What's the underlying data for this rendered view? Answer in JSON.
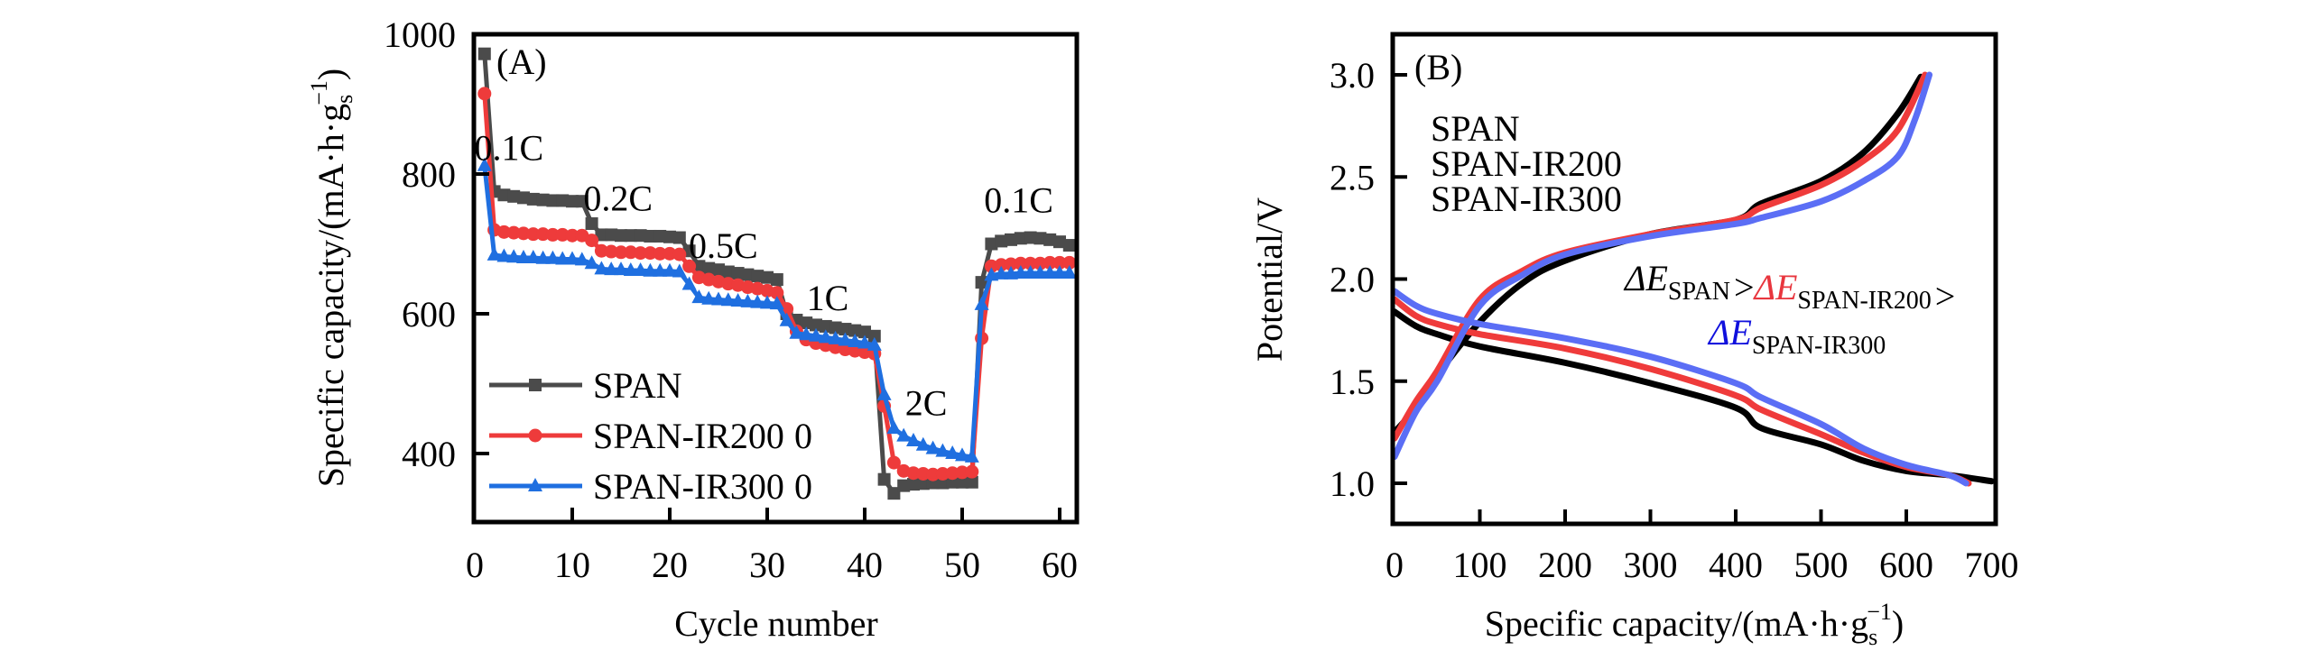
{
  "chart_data": [
    {
      "id": "A",
      "type": "line",
      "panel_label": "(A)",
      "title": "",
      "xlabel": "Cycle number",
      "ylabel_main": "Specific capacity/(mA·h·g",
      "ylabel_sub": "s",
      "ylabel_sup": "−1",
      "ylabel_close": ")",
      "xlim": [
        0,
        61
      ],
      "ylim": [
        310,
        1000
      ],
      "xticks": [
        0,
        10,
        20,
        30,
        40,
        50,
        60
      ],
      "yticks": [
        400,
        600,
        800,
        1000
      ],
      "grid": false,
      "legend_position": "bottom-left",
      "rate_labels": [
        {
          "text": "0.1C",
          "x": 3.5,
          "y": 820
        },
        {
          "text": "0.2C",
          "x": 14.7,
          "y": 748
        },
        {
          "text": "0.5C",
          "x": 25.5,
          "y": 680
        },
        {
          "text": "1C",
          "x": 36.2,
          "y": 605
        },
        {
          "text": "2C",
          "x": 46.3,
          "y": 455
        },
        {
          "text": "0.1C",
          "x": 55.8,
          "y": 745
        }
      ],
      "x": [
        1,
        2,
        3,
        4,
        5,
        6,
        7,
        8,
        9,
        10,
        11,
        12,
        13,
        14,
        15,
        16,
        17,
        18,
        19,
        20,
        21,
        22,
        23,
        24,
        25,
        26,
        27,
        28,
        29,
        30,
        31,
        32,
        33,
        34,
        35,
        36,
        37,
        38,
        39,
        40,
        41,
        42,
        43,
        44,
        45,
        46,
        47,
        48,
        49,
        50,
        51,
        52,
        53,
        54,
        55,
        56,
        57,
        58,
        59,
        60,
        61
      ],
      "series": [
        {
          "name": "SPAN",
          "legend_extra": "",
          "color": "#4b4b4b",
          "marker": "square",
          "values": [
            972,
            775,
            770,
            768,
            766,
            764,
            763,
            762,
            762,
            761,
            761,
            729,
            713,
            713,
            712,
            712,
            712,
            711,
            711,
            710,
            709,
            690,
            668,
            665,
            663,
            660,
            658,
            656,
            654,
            652,
            649,
            600,
            591,
            587,
            584,
            582,
            580,
            578,
            576,
            574,
            568,
            363,
            343,
            354,
            356,
            357,
            358,
            358,
            359,
            359,
            359,
            645,
            700,
            704,
            706,
            708,
            709,
            708,
            706,
            703,
            698
          ]
        },
        {
          "name": "SPAN-IR200",
          "legend_extra": "0",
          "color": "#ee3b3b",
          "marker": "circle",
          "values": [
            915,
            720,
            717,
            716,
            715,
            714,
            714,
            713,
            713,
            712,
            712,
            705,
            690,
            689,
            688,
            688,
            687,
            687,
            686,
            686,
            685,
            668,
            652,
            649,
            646,
            643,
            641,
            638,
            636,
            633,
            630,
            607,
            575,
            563,
            558,
            555,
            552,
            549,
            547,
            545,
            543,
            468,
            387,
            375,
            372,
            371,
            370,
            371,
            372,
            373,
            374,
            565,
            668,
            670,
            671,
            672,
            672,
            672,
            673,
            673,
            673
          ]
        },
        {
          "name": "SPAN-IR300",
          "legend_extra": "0",
          "color": "#1f6fe0",
          "marker": "triangle",
          "values": [
            812,
            684,
            682,
            681,
            680,
            680,
            679,
            679,
            678,
            678,
            677,
            672,
            664,
            663,
            663,
            662,
            662,
            661,
            661,
            661,
            660,
            642,
            623,
            621,
            620,
            619,
            618,
            617,
            616,
            615,
            614,
            590,
            572,
            570,
            568,
            566,
            564,
            562,
            560,
            558,
            555,
            484,
            436,
            425,
            418,
            412,
            407,
            403,
            400,
            397,
            395,
            613,
            655,
            657,
            657,
            658,
            658,
            658,
            658,
            658,
            658
          ]
        }
      ]
    },
    {
      "id": "B",
      "type": "line",
      "panel_label": "(B)",
      "title": "",
      "xlabel_main": "Specific capacity/(mA·h·g",
      "xlabel_sub": "s",
      "xlabel_sup": "−1",
      "xlabel_close": ")",
      "ylabel": "Potential/V",
      "xlim": [
        0,
        700
      ],
      "ylim": [
        0.79,
        3.2
      ],
      "xticks": [
        0,
        100,
        200,
        300,
        400,
        500,
        600,
        700
      ],
      "yticks": [
        1.0,
        1.5,
        2.0,
        2.5,
        3.0
      ],
      "ytick_labels": [
        "1.0",
        "1.5",
        "2.0",
        "2.5",
        "3.0"
      ],
      "grid": false,
      "legend_position": "top-left",
      "annotation": {
        "line1": [
          {
            "symbol": "ΔE",
            "sub": "SPAN",
            "color": "#000000"
          },
          {
            "op": ">"
          },
          {
            "symbol": "ΔE",
            "sub": "SPAN-IR200",
            "color": "#e8363e"
          },
          {
            "op": ">"
          }
        ],
        "line2": [
          {
            "symbol": "ΔE",
            "sub": "SPAN-IR300",
            "color": "#1010dd"
          }
        ]
      },
      "series": [
        {
          "name": "SPAN",
          "legend_color": "#000000",
          "color": "#000000",
          "charge": {
            "x": [
              0,
              25,
              50,
              100,
              150,
              200,
              300,
              400,
              430,
              500,
              550,
              590,
              617
            ],
            "y": [
              1.25,
              1.37,
              1.53,
              1.79,
              1.98,
              2.09,
              2.22,
              2.29,
              2.37,
              2.48,
              2.62,
              2.81,
              2.99
            ]
          },
          "discharge": {
            "x": [
              0,
              25,
              50,
              100,
              200,
              300,
              400,
              430,
              500,
              550,
              600,
              650,
              700
            ],
            "y": [
              1.84,
              1.77,
              1.73,
              1.67,
              1.59,
              1.49,
              1.37,
              1.27,
              1.19,
              1.11,
              1.06,
              1.04,
              1.01
            ]
          }
        },
        {
          "name": "SPAN-IR200",
          "legend_color": "#e8363e",
          "color": "#ef3b3b",
          "charge": {
            "x": [
              0,
              25,
              50,
              100,
              150,
              200,
              300,
              400,
              430,
              500,
              550,
              590,
              622
            ],
            "y": [
              1.22,
              1.4,
              1.55,
              1.9,
              2.04,
              2.13,
              2.22,
              2.29,
              2.35,
              2.46,
              2.58,
              2.73,
              3.0
            ]
          },
          "discharge": {
            "x": [
              0,
              25,
              50,
              100,
              200,
              300,
              400,
              430,
              500,
              550,
              600,
              650,
              673
            ],
            "y": [
              1.9,
              1.82,
              1.78,
              1.73,
              1.66,
              1.56,
              1.43,
              1.36,
              1.24,
              1.15,
              1.08,
              1.04,
              1.0
            ]
          }
        },
        {
          "name": "SPAN-IR300",
          "legend_color": "#1010dd",
          "color": "#5b6ef5",
          "charge": {
            "x": [
              0,
              25,
              50,
              100,
              150,
              200,
              300,
              400,
              430,
              500,
              550,
              590,
              610,
              627
            ],
            "y": [
              1.13,
              1.35,
              1.5,
              1.87,
              2.02,
              2.12,
              2.21,
              2.27,
              2.3,
              2.38,
              2.48,
              2.6,
              2.78,
              3.0
            ]
          },
          "discharge": {
            "x": [
              0,
              25,
              50,
              100,
              200,
              300,
              400,
              430,
              500,
              550,
              600,
              650,
              670
            ],
            "y": [
              1.94,
              1.87,
              1.83,
              1.78,
              1.71,
              1.62,
              1.49,
              1.42,
              1.29,
              1.17,
              1.09,
              1.04,
              1.0
            ]
          }
        }
      ]
    }
  ]
}
